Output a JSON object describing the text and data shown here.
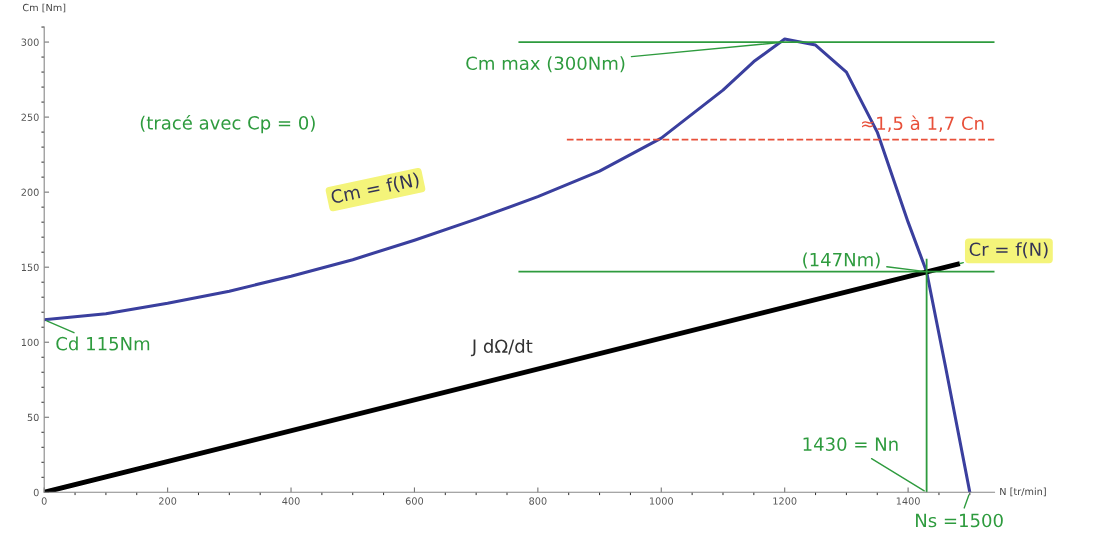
{
  "chart_data": {
    "type": "line",
    "xlabel": "N [tr/min]",
    "ylabel": "Cm [Nm]",
    "xlim": [
      0,
      1540
    ],
    "ylim": [
      0,
      310
    ],
    "xticks": [
      0,
      200,
      400,
      600,
      800,
      1000,
      1200,
      1400
    ],
    "yticks": [
      0,
      50,
      100,
      150,
      200,
      250,
      300
    ],
    "grid": false,
    "marker": "none",
    "line_style": "solid",
    "series": [
      {
        "color": "#3a3f9e",
        "x": [
          0,
          100,
          200,
          300,
          400,
          500,
          600,
          700,
          800,
          900,
          1000,
          1100,
          1150,
          1200,
          1250,
          1300,
          1350,
          1400,
          1430,
          1460,
          1500
        ],
        "values": [
          115,
          119,
          126,
          134,
          144,
          155,
          168,
          182,
          197,
          214,
          236,
          268,
          287,
          302,
          298,
          280,
          240,
          180,
          147,
          85,
          0
        ]
      },
      {
        "color": "#000000",
        "x": [
          0,
          1480
        ],
        "values": [
          0,
          152
        ]
      }
    ],
    "ref_lines": [
      {
        "axis": "y",
        "value": 300,
        "color": "#2e9b3e",
        "line_style": "solid"
      },
      {
        "axis": "y",
        "value": 147,
        "color": "#2e9b3e",
        "line_style": "solid"
      },
      {
        "axis": "x",
        "value": 1430,
        "color": "#2e9b3e",
        "line_style": "solid"
      },
      {
        "axis": "y",
        "value": 235,
        "color": "#e8503a",
        "line_style": "dashed",
        "label": "≈1,5 à 1,7 Cn"
      }
    ],
    "annotations": [
      "(tracé avec Cp = 0)",
      {
        "text": "Cm max (300Nm)",
        "x": 1200,
        "y": 300
      },
      "Cm = f(N)",
      {
        "text": "Cd 115Nm",
        "x": 0,
        "y": 115
      },
      "J dΩ/dt",
      {
        "text": "Cr = f(N)",
        "x": 1480,
        "y": 152
      },
      {
        "text": "(147Nm)",
        "x": 1430,
        "y": 147
      },
      {
        "text": "1430 = Nn",
        "x": 1430,
        "y": 0
      },
      {
        "text": "Ns =1500",
        "x": 1500,
        "y": 0
      }
    ]
  }
}
